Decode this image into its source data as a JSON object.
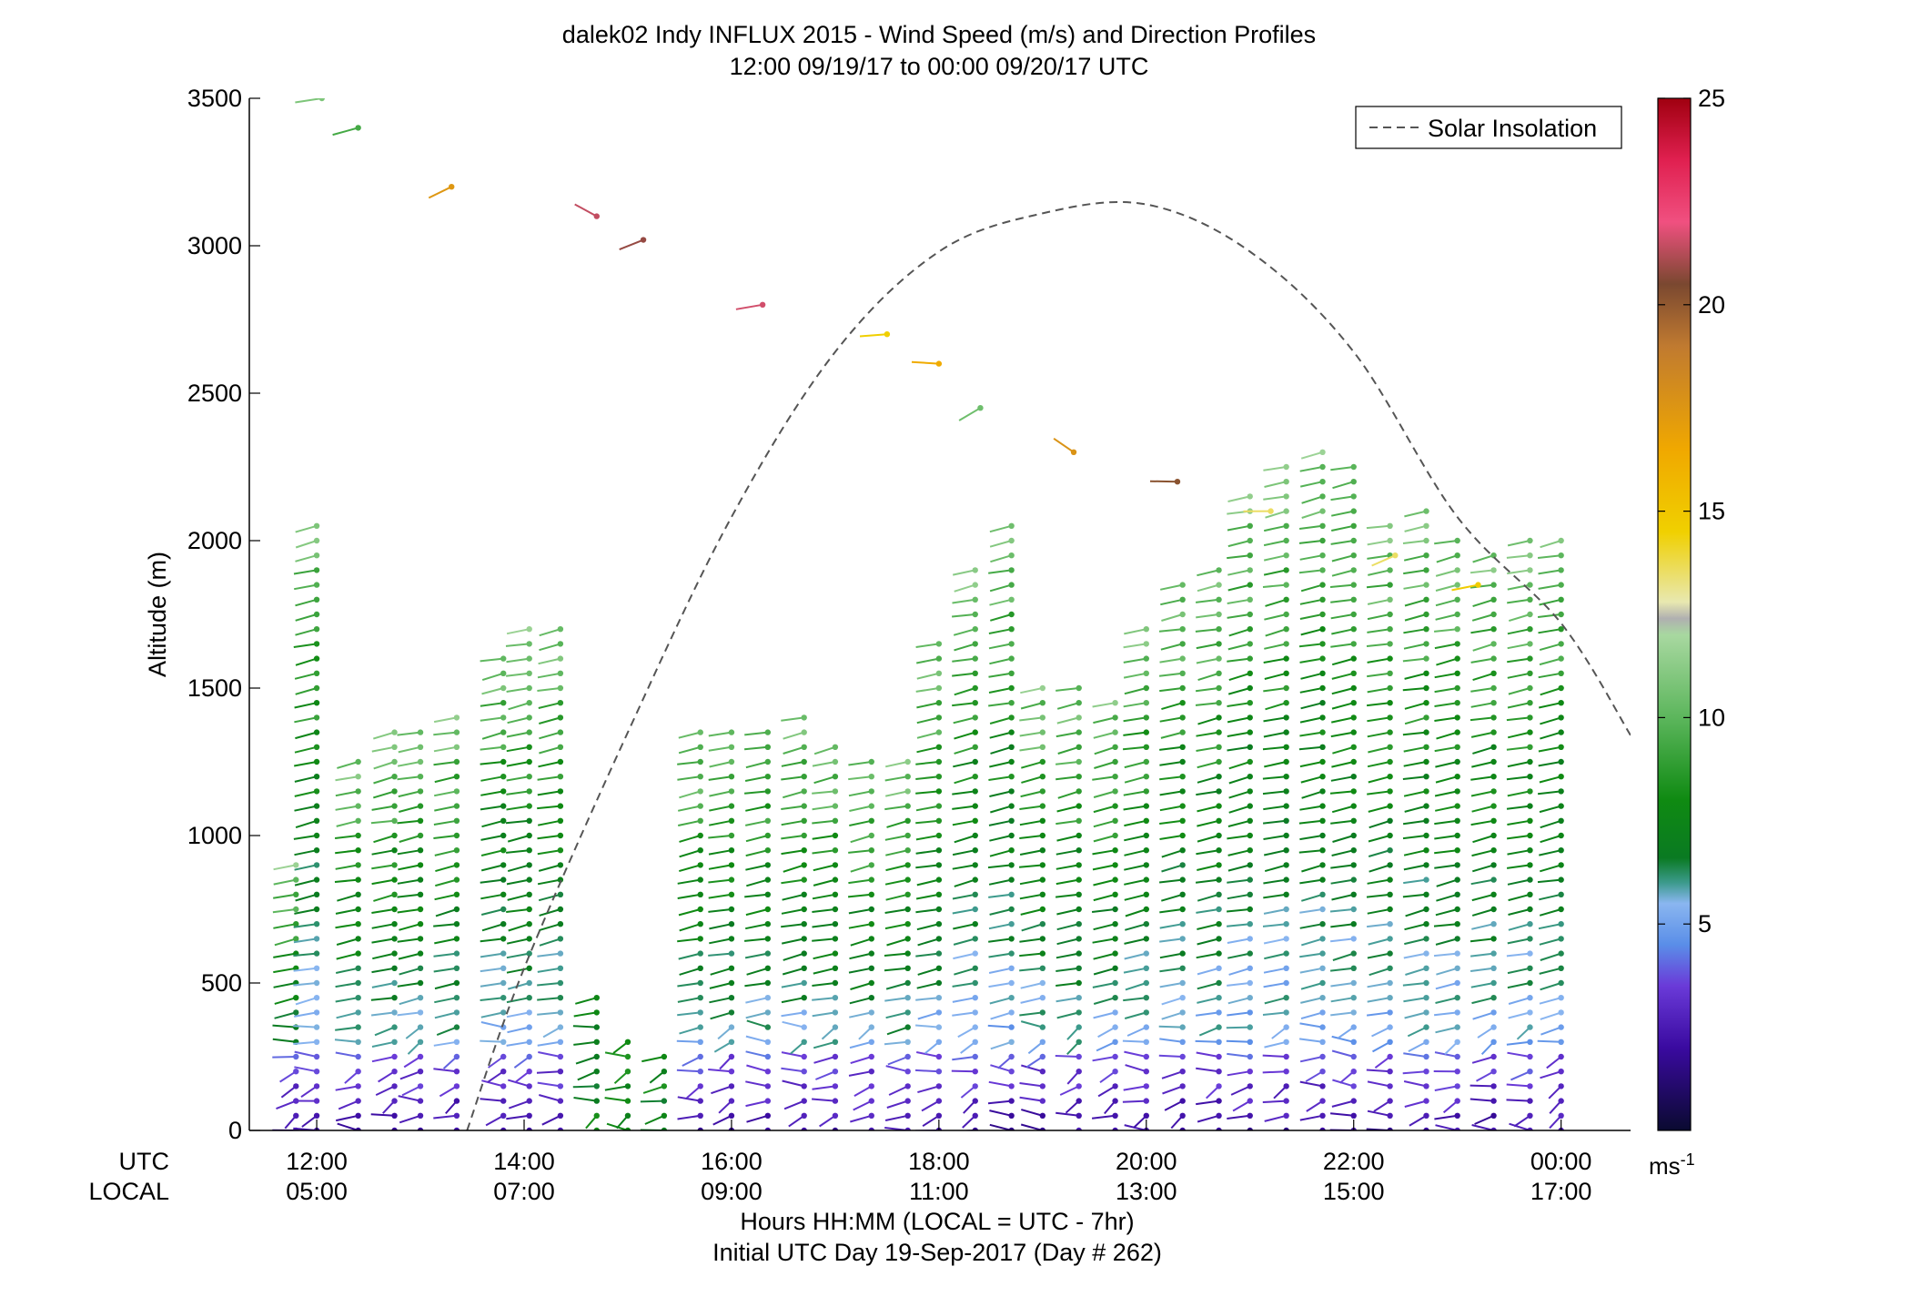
{
  "chart_data": {
    "type": "scatter",
    "title": "dalek02 Indy INFLUX 2015 - Wind Speed (m/s) and Direction Profiles",
    "subtitle": "12:00 09/19/17 to 00:00 09/20/17  UTC",
    "ylabel": "Altitude (m)",
    "xlabel": "Hours HH:MM  (LOCAL = UTC - 7hr)",
    "footer": "Initial UTC Day 19-Sep-2017 (Day # 262)",
    "ylim": [
      0,
      3500
    ],
    "xlim_utc_hours": [
      11.35,
      24.67
    ],
    "y_ticks": [
      0,
      500,
      1000,
      1500,
      2000,
      2500,
      3000,
      3500
    ],
    "x_ticks_utc": [
      "12:00",
      "14:00",
      "16:00",
      "18:00",
      "20:00",
      "22:00",
      "00:00"
    ],
    "x_ticks_local": [
      "05:00",
      "07:00",
      "09:00",
      "11:00",
      "13:00",
      "15:00",
      "17:00"
    ],
    "x_tick_hours": [
      12,
      14,
      16,
      18,
      20,
      22,
      24
    ],
    "row_label_utc": "UTC",
    "row_label_local": "LOCAL",
    "legend": {
      "label": "Solar Insolation",
      "placement": "top-right"
    },
    "colorbar": {
      "min": 0,
      "max": 25,
      "ticks": [
        5,
        10,
        15,
        20,
        25
      ],
      "unit_base": "ms",
      "unit_exp": "-1",
      "stops": [
        {
          "v": 0,
          "c": "#0a0a30"
        },
        {
          "v": 2,
          "c": "#3a0aa0"
        },
        {
          "v": 3.5,
          "c": "#6a3ad8"
        },
        {
          "v": 4.5,
          "c": "#5a8ee8"
        },
        {
          "v": 5.5,
          "c": "#8ab6f0"
        },
        {
          "v": 6.0,
          "c": "#3c9a8c"
        },
        {
          "v": 6.6,
          "c": "#0a7a22"
        },
        {
          "v": 8,
          "c": "#0f8a12"
        },
        {
          "v": 10,
          "c": "#5cb65c"
        },
        {
          "v": 12,
          "c": "#a8d8a0"
        },
        {
          "v": 12.4,
          "c": "#b0b0b0"
        },
        {
          "v": 12.8,
          "c": "#e8e8b0"
        },
        {
          "v": 14.5,
          "c": "#f0d000"
        },
        {
          "v": 16.5,
          "c": "#f0a800"
        },
        {
          "v": 19,
          "c": "#c07a30"
        },
        {
          "v": 20.5,
          "c": "#7a4830"
        },
        {
          "v": 22,
          "c": "#f05080"
        },
        {
          "v": 23.5,
          "c": "#e02050"
        },
        {
          "v": 25,
          "c": "#a00010"
        }
      ]
    },
    "solar_insolation": {
      "style": "dashed",
      "color": "#555555",
      "x_utc_hours": [
        13.45,
        14.0,
        15.0,
        16.0,
        17.0,
        18.0,
        19.0,
        20.0,
        21.0,
        22.0,
        23.0,
        24.0,
        24.67
      ],
      "y_altitude_m": [
        0,
        550,
        1350,
        2080,
        2640,
        2980,
        3110,
        3140,
        2980,
        2640,
        2080,
        1720,
        1340
      ]
    },
    "profiles": {
      "times_utc_hours": [
        11.8,
        12.0,
        12.4,
        12.75,
        13.0,
        13.35,
        13.8,
        14.05,
        14.35,
        14.7,
        15.0,
        15.35,
        15.7,
        16.0,
        16.35,
        16.7,
        17.0,
        17.35,
        17.7,
        18.0,
        18.35,
        18.7,
        19.0,
        19.35,
        19.7,
        20.0,
        20.35,
        20.7,
        21.0,
        21.35,
        21.7,
        22.0,
        22.35,
        22.7,
        23.0,
        23.35,
        23.7,
        24.0
      ],
      "tops_m": [
        900,
        2050,
        1250,
        1350,
        1380,
        1420,
        1640,
        1700,
        1700,
        450,
        300,
        280,
        1350,
        1380,
        1380,
        1400,
        1300,
        1250,
        1250,
        1650,
        1900,
        2050,
        1500,
        1500,
        1450,
        1700,
        1850,
        1900,
        2150,
        2250,
        2300,
        2250,
        2050,
        2100,
        2000,
        1950,
        2000,
        2000
      ],
      "level_step_m": 50,
      "speed_model": "low speeds (1-5 m/s) near surface rising through 5-7 m/s in the mid levels to 8-11 m/s near profile tops"
    },
    "scattered_high_barbs_m": [
      3500,
      3400,
      3200,
      3100,
      3020,
      2800,
      2700,
      2600,
      2450,
      2300,
      2200,
      2100,
      1950,
      1850
    ]
  }
}
